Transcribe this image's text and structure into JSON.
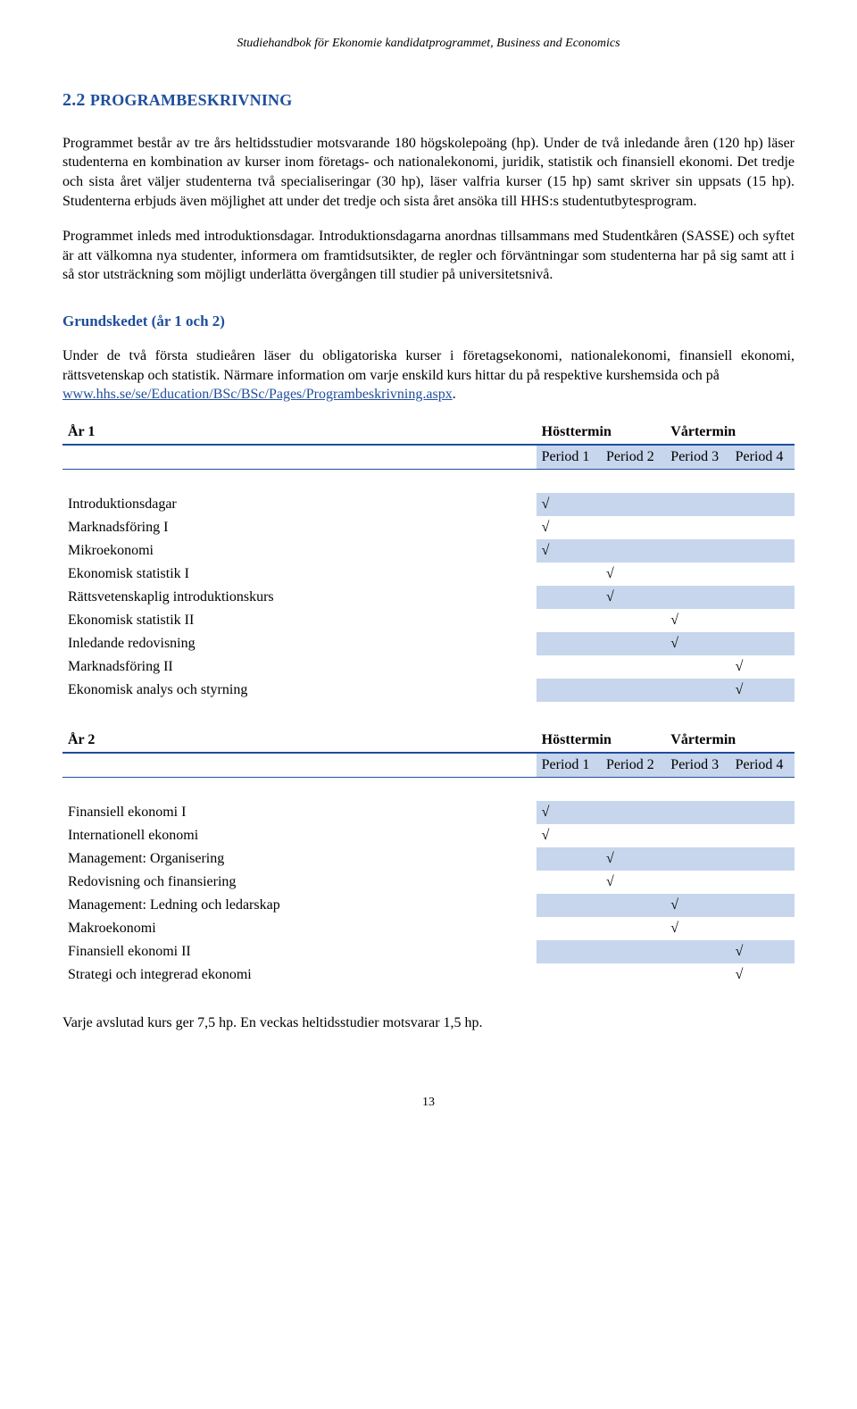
{
  "header": "Studiehandbok för Ekonomie kandidatprogrammet, Business and Economics",
  "section_number": "2.2",
  "section_title": "PROGRAMBESKRIVNING",
  "para1": "Programmet består av tre års heltidsstudier motsvarande 180 högskolepoäng (hp). Under de två inledande åren (120 hp) läser studenterna en kombination av kurser inom företags- och nationalekonomi, juridik, statistik och finansiell ekonomi. Det tredje och sista året väljer studenterna två specialiseringar (30 hp), läser valfria kurser (15 hp) samt skriver sin uppsats (15 hp). Studenterna erbjuds även möjlighet att under det tredje och sista året ansöka till HHS:s studentutbytesprogram.",
  "para2": "Programmet inleds med introduktionsdagar. Introduktionsdagarna anordnas tillsammans med Studentkåren (SASSE) och syftet är att välkomna nya studenter, informera om framtidsutsikter, de regler och förväntningar som studenterna har på sig samt att i så stor utsträckning som möjligt underlätta övergången till studier på universitetsnivå.",
  "sub_heading": "Grundskedet (år 1 och 2)",
  "para3_a": "Under de två första studieåren läser du obligatoriska kurser i företagsekonomi, nationalekonomi, finansiell ekonomi, rättsvetenskap och statistik. Närmare information om varje enskild kurs hittar du på respektive kurshemsida och på ",
  "link_text": "www.hhs.se/se/Education/BSc/BSc/Pages/Programbeskrivning.aspx",
  "tables": {
    "year1": {
      "year_label": "År 1",
      "ht": "Hösttermin",
      "vt": "Vårtermin",
      "p1": "Period 1",
      "p2": "Period 2",
      "p3": "Period 3",
      "p4": "Period 4",
      "rows": [
        {
          "name": "Introduktionsdagar",
          "p1": "√",
          "p2": "",
          "p3": "",
          "p4": ""
        },
        {
          "name": "Marknadsföring I",
          "p1": "√",
          "p2": "",
          "p3": "",
          "p4": ""
        },
        {
          "name": "Mikroekonomi",
          "p1": "√",
          "p2": "",
          "p3": "",
          "p4": ""
        },
        {
          "name": "Ekonomisk statistik I",
          "p1": "",
          "p2": "√",
          "p3": "",
          "p4": ""
        },
        {
          "name": "Rättsvetenskaplig introduktionskurs",
          "p1": "",
          "p2": "√",
          "p3": "",
          "p4": ""
        },
        {
          "name": "Ekonomisk statistik II",
          "p1": "",
          "p2": "",
          "p3": "√",
          "p4": ""
        },
        {
          "name": "Inledande redovisning",
          "p1": "",
          "p2": "",
          "p3": "√",
          "p4": ""
        },
        {
          "name": "Marknadsföring II",
          "p1": "",
          "p2": "",
          "p3": "",
          "p4": "√"
        },
        {
          "name": "Ekonomisk analys och styrning",
          "p1": "",
          "p2": "",
          "p3": "",
          "p4": "√"
        }
      ]
    },
    "year2": {
      "year_label": "År 2",
      "ht": "Hösttermin",
      "vt": "Vårtermin",
      "p1": "Period 1",
      "p2": "Period 2",
      "p3": "Period 3",
      "p4": "Period 4",
      "rows": [
        {
          "name": "Finansiell ekonomi I",
          "p1": "√",
          "p2": "",
          "p3": "",
          "p4": ""
        },
        {
          "name": "Internationell ekonomi",
          "p1": "√",
          "p2": "",
          "p3": "",
          "p4": ""
        },
        {
          "name": "Management: Organisering",
          "p1": "",
          "p2": "√",
          "p3": "",
          "p4": ""
        },
        {
          "name": "Redovisning och finansiering",
          "p1": "",
          "p2": "√",
          "p3": "",
          "p4": ""
        },
        {
          "name": "Management: Ledning och ledarskap",
          "p1": "",
          "p2": "",
          "p3": "√",
          "p4": ""
        },
        {
          "name": "Makroekonomi",
          "p1": "",
          "p2": "",
          "p3": "√",
          "p4": ""
        },
        {
          "name": "Finansiell ekonomi II",
          "p1": "",
          "p2": "",
          "p3": "",
          "p4": "√"
        },
        {
          "name": "Strategi och integrerad ekonomi",
          "p1": "",
          "p2": "",
          "p3": "",
          "p4": "√"
        }
      ]
    }
  },
  "footer_note": "Varje avslutad kurs ger 7,5 hp. En veckas heltidsstudier motsvarar 1,5 hp.",
  "page_number": "13"
}
